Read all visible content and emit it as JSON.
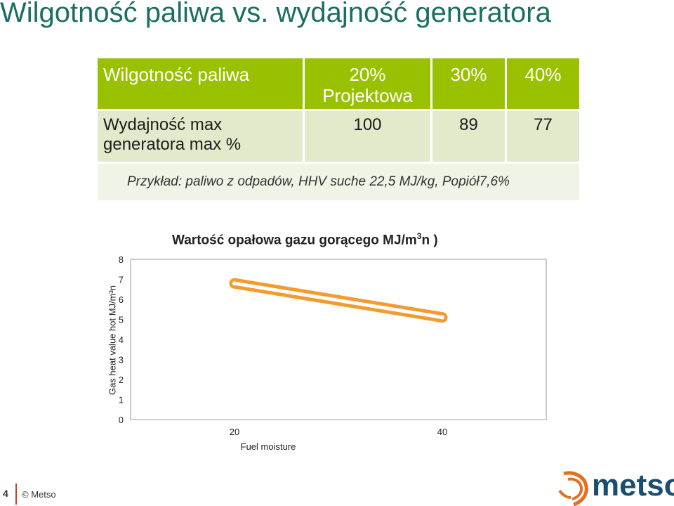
{
  "slide": {
    "title": "Wilgotność paliwa vs. wydajność generatora",
    "page_number": "4",
    "copyright": "© Metso"
  },
  "table": {
    "header": {
      "label": "Wilgotność paliwa",
      "col1_line1": "20%",
      "col1_line2": "Projektowa",
      "col2": "30%",
      "col3": "40%"
    },
    "row": {
      "label_line1": "Wydajność max",
      "label_line2": "generatora max  %",
      "col1": "100",
      "col2": "89",
      "col3": "77"
    },
    "note": "Przykład: paliwo z odpadów,  HHV suche 22,5 MJ/kg, Popiół7,6%"
  },
  "chart_data": {
    "type": "line",
    "title_main": "Wartość opałowa gazu  gorącego MJ/m",
    "title_sup": "3",
    "title_end": "n  )",
    "ylabel": "Gas heat value hot MJ/m³n",
    "xlabel": "Fuel moisture",
    "x": [
      20,
      40
    ],
    "values": [
      6.8,
      5.1
    ],
    "xlim": [
      10,
      50
    ],
    "ylim": [
      0,
      8
    ],
    "y_ticks": [
      "0",
      "1",
      "2",
      "3",
      "4",
      "5",
      "6",
      "7",
      "8"
    ],
    "x_ticks": [
      "20",
      "40"
    ],
    "line_color": "#f39b2e",
    "grid": false
  },
  "logo": {
    "text": "metso",
    "color": "#1b4e6e",
    "accent": "#e2701f"
  }
}
